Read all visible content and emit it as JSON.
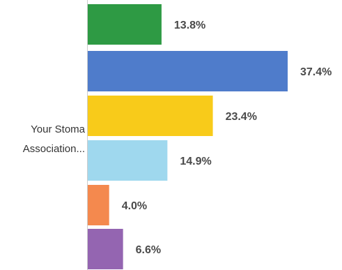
{
  "chart_data": {
    "type": "bar",
    "orientation": "horizontal",
    "category_label_lines": [
      "Your Stoma",
      "Association..."
    ],
    "values": [
      13.8,
      37.4,
      23.4,
      14.9,
      4.0,
      6.6
    ],
    "value_labels": [
      "13.8%",
      "37.4%",
      "23.4%",
      "14.9%",
      "4.0%",
      "6.6%"
    ],
    "colors": [
      "#2e9a44",
      "#4f7ccb",
      "#f8cb1a",
      "#9fd8ee",
      "#f4894e",
      "#9465b1"
    ],
    "xlim": [
      0,
      37.4
    ],
    "grid": false,
    "legend": "none"
  }
}
